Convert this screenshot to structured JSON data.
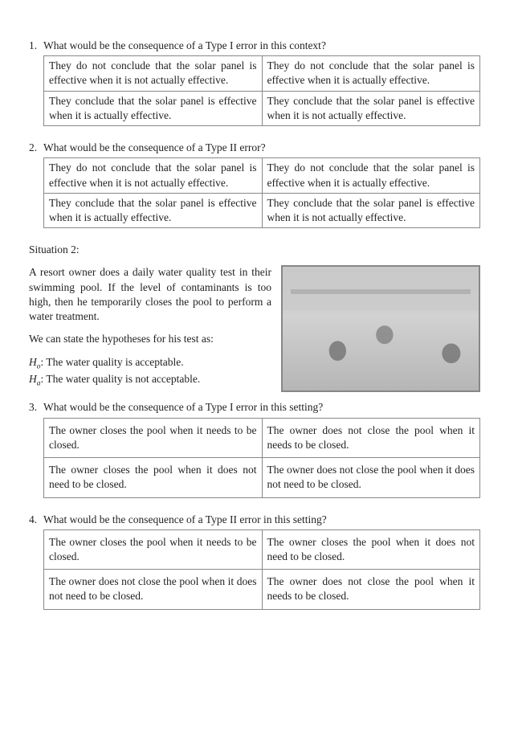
{
  "q1": {
    "num": "1.",
    "prompt": "What would be the consequence of a Type I error in this context?",
    "cells": [
      "They do not conclude that the solar panel is effective when it is not actually effective.",
      "They do not conclude that the solar panel is effective when it is actually effective.",
      "They conclude that the solar panel is effective when it is actually effective.",
      "They conclude that the solar panel is effective when it is not actually effective."
    ]
  },
  "q2": {
    "num": "2.",
    "prompt": "What would be the consequence of a Type II error?",
    "cells": [
      "They do not conclude that the solar panel is effective when it is not actually effective.",
      "They do not conclude that the solar panel is effective when it is actually effective.",
      "They conclude that the solar panel is effective when it is actually effective.",
      "They conclude that the solar panel is effective when it is not actually effective."
    ]
  },
  "situation2": {
    "label": "Situation 2:",
    "para1": "A resort owner does a daily water quality test in their swimming pool. If the level of contaminants is too high, then he temporarily closes the pool to perform a water treatment.",
    "para2": "We can state the hypotheses for his test as:",
    "h0_sym": "H",
    "h0_sub": "o",
    "h0_text": ": The water quality is acceptable.",
    "ha_sym": "H",
    "ha_sub": "a",
    "ha_text": ": The water quality is not acceptable."
  },
  "q3": {
    "num": "3.",
    "prompt": "What would be the consequence of a Type I error in this setting?",
    "cells": [
      "The owner closes the pool when it needs to be closed.",
      "The owner does not close the pool when it needs to be closed.",
      "The owner closes the pool when it does not need to be closed.",
      "The owner does not close the pool when it does not need to be closed."
    ]
  },
  "q4": {
    "num": "4.",
    "prompt": "What would be the consequence of a Type II error in this setting?",
    "cells": [
      "The owner closes the pool when it needs to be closed.",
      "The owner closes the pool when it does not need to be closed.",
      "The owner does not close the pool when it does not need to be closed.",
      "The owner does not close the pool when it needs to be closed."
    ]
  }
}
